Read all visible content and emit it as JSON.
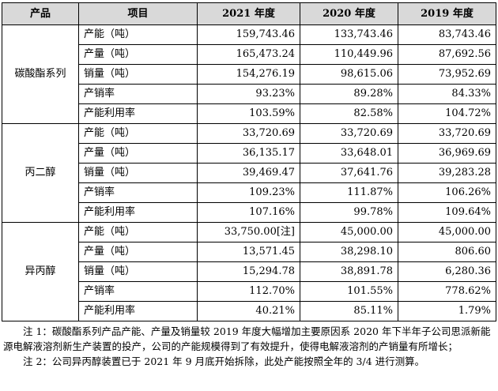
{
  "headers": {
    "product": "产品",
    "item": "项目",
    "y2021": "2021 年度",
    "y2020": "2020 年度",
    "y2019": "2019 年度"
  },
  "groups": [
    {
      "product": "碳酸酯系列",
      "rows": [
        {
          "item": "产能（吨）",
          "y2021": "159,743.46",
          "y2020": "133,743.46",
          "y2019": "83,743.46"
        },
        {
          "item": "产量（吨）",
          "y2021": "165,473.24",
          "y2020": "110,449.96",
          "y2019": "87,692.56"
        },
        {
          "item": "销量（吨）",
          "y2021": "154,276.19",
          "y2020": "98,615.06",
          "y2019": "73,952.69"
        },
        {
          "item": "产销率",
          "y2021": "93.23%",
          "y2020": "89.28%",
          "y2019": "84.33%"
        },
        {
          "item": "产能利用率",
          "y2021": "103.59%",
          "y2020": "82.58%",
          "y2019": "104.72%"
        }
      ]
    },
    {
      "product": "丙二醇",
      "rows": [
        {
          "item": "产能（吨）",
          "y2021": "33,720.69",
          "y2020": "33,720.69",
          "y2019": "33,720.69"
        },
        {
          "item": "产量（吨）",
          "y2021": "36,135.17",
          "y2020": "33,648.01",
          "y2019": "36,969.69"
        },
        {
          "item": "销量（吨）",
          "y2021": "39,469.47",
          "y2020": "37,641.76",
          "y2019": "39,283.28"
        },
        {
          "item": "产销率",
          "y2021": "109.23%",
          "y2020": "111.87%",
          "y2019": "106.26%"
        },
        {
          "item": "产能利用率",
          "y2021": "107.16%",
          "y2020": "99.78%",
          "y2019": "109.64%"
        }
      ]
    },
    {
      "product": "异丙醇",
      "rows": [
        {
          "item": "产能（吨）",
          "y2021": "33,750.00[注]",
          "y2020": "45,000.00",
          "y2019": "45,000.00"
        },
        {
          "item": "产量（吨）",
          "y2021": "13,571.45",
          "y2020": "38,298.10",
          "y2019": "806.60"
        },
        {
          "item": "销量（吨）",
          "y2021": "15,294.78",
          "y2020": "38,891.78",
          "y2019": "6,280.36"
        },
        {
          "item": "产销率",
          "y2021": "112.70%",
          "y2020": "101.55%",
          "y2019": "778.62%"
        },
        {
          "item": "产能利用率",
          "y2021": "40.21%",
          "y2020": "85.11%",
          "y2019": "1.79%"
        }
      ]
    }
  ],
  "notes": [
    "注 1：碳酸酯系列产品产能、产量及销量较 2019 年度大幅增加主要原因系 2020 年下半年子公司思派新能源电解液溶剂新生产装置的投产，公司的产能规模得到了有效提升，使得电解液溶剂的产销量有所增长；",
    "注 2：公司异丙醇装置已于 2021 年 9 月底开始拆除，此处产能按照全年的 3/4 进行测算。"
  ]
}
